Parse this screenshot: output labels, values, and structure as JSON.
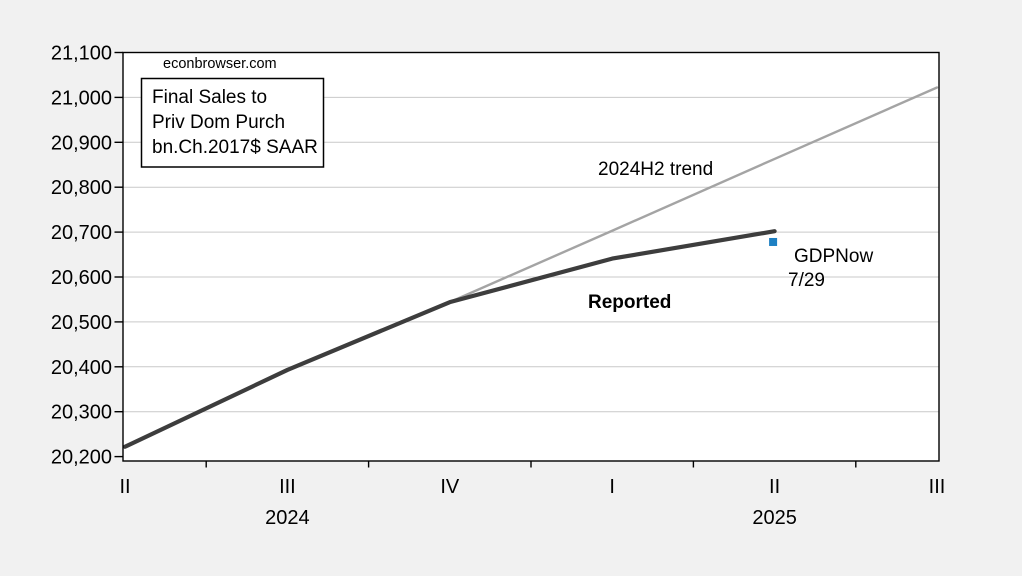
{
  "page": {
    "background_color": "#f1f1f1",
    "plot_background_color": "#ffffff",
    "gridline_color": "#c9c9c9",
    "axis_color": "#000000"
  },
  "chart_data": {
    "type": "line",
    "title": "Final Sales to Priv Dom Purch bn.Ch.2017$ SAAR",
    "watermark": "econbrowser.com",
    "note_box_lines": [
      "Final Sales to",
      "Priv Dom Purch",
      "bn.Ch.2017$ SAAR"
    ],
    "x_tick_labels": [
      "II",
      "III",
      "IV",
      "I",
      "II",
      "III"
    ],
    "year_labels": [
      {
        "text": "2024",
        "x_index": 1
      },
      {
        "text": "2025",
        "x_index": 4
      }
    ],
    "y_axis": {
      "min": 20200,
      "max": 21100,
      "step": 100,
      "tick_labels": [
        "20,200",
        "20,300",
        "20,400",
        "20,500",
        "20,600",
        "20,700",
        "20,800",
        "20,900",
        "21,000",
        "21,100"
      ]
    },
    "grid": true,
    "legend": "none",
    "series": [
      {
        "name": "Reported",
        "color": "#3d3d3d",
        "stroke_width": 4.2,
        "start_index": 0,
        "x_labels": [
          "2024 II",
          "2024 III",
          "2024 IV",
          "2025 I",
          "2025 II"
        ],
        "values": [
          20222,
          20393,
          20544,
          20641,
          20702
        ]
      },
      {
        "name": "2024H2 trend",
        "color": "#a4a4a4",
        "stroke_width": 2.4,
        "start_index": 2,
        "x_labels": [
          "2024 IV",
          "2025 I",
          "2025 II",
          "2025 III"
        ],
        "values": [
          20544,
          20703,
          20863,
          21022
        ]
      }
    ],
    "marker": {
      "name": "GDPNow 7/29",
      "color": "#1d80c3",
      "x_index": 4,
      "value": 20678,
      "size": 8
    },
    "annotations": {
      "trend_label": "2024H2 trend",
      "trend_label_color": "#8f8f8f",
      "reported_label": "Reported",
      "reported_label_color": "#000000",
      "gdpnow_label_line1": "GDPNow",
      "gdpnow_label_line2": "7/29",
      "gdpnow_label_color": "#1d80c3"
    }
  }
}
